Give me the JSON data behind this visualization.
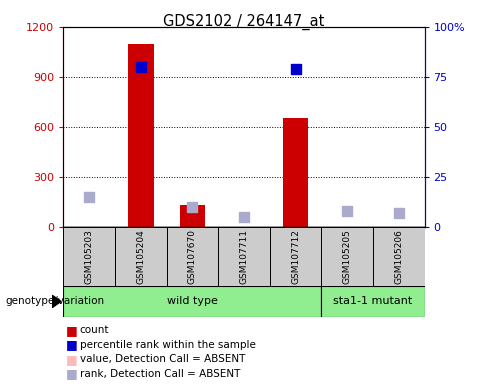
{
  "title": "GDS2102 / 264147_at",
  "samples": [
    "GSM105203",
    "GSM105204",
    "GSM107670",
    "GSM107711",
    "GSM107712",
    "GSM105205",
    "GSM105206"
  ],
  "count_values": [
    0,
    1100,
    130,
    0,
    650,
    0,
    0
  ],
  "rank_values": [
    0,
    80,
    0,
    0,
    79,
    0,
    0
  ],
  "absent_rank_values": [
    15,
    0,
    10,
    5,
    0,
    8,
    7
  ],
  "rank_absent": [
    true,
    false,
    true,
    true,
    false,
    true,
    true
  ],
  "ylim_left": [
    0,
    1200
  ],
  "ylim_right": [
    0,
    100
  ],
  "yticks_left": [
    0,
    300,
    600,
    900,
    1200
  ],
  "yticks_right": [
    0,
    25,
    50,
    75,
    100
  ],
  "yticklabels_left": [
    "0",
    "300",
    "600",
    "900",
    "1200"
  ],
  "yticklabels_right": [
    "0",
    "25",
    "50",
    "75",
    "100%"
  ],
  "bar_color": "#cc0000",
  "rank_color": "#0000cc",
  "absent_value_color": "#ffbbbb",
  "absent_rank_color": "#aaaacc",
  "group_bg": "#90EE90",
  "header_bg": "#cccccc",
  "figsize": [
    4.88,
    3.84
  ],
  "dpi": 100,
  "bar_width": 0.5,
  "marker_size": 55,
  "genotype_label": "genotype/variation",
  "legend_items": [
    {
      "color": "#cc0000",
      "label": "count"
    },
    {
      "color": "#0000cc",
      "label": "percentile rank within the sample"
    },
    {
      "color": "#ffbbbb",
      "label": "value, Detection Call = ABSENT"
    },
    {
      "color": "#aaaacc",
      "label": "rank, Detection Call = ABSENT"
    }
  ]
}
